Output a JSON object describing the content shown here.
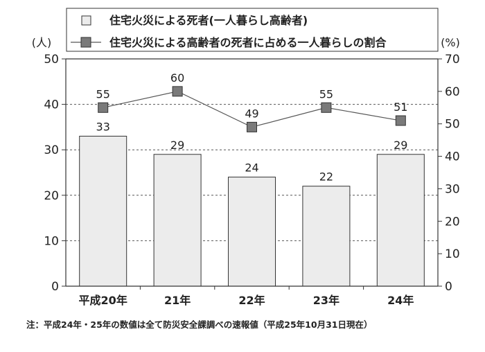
{
  "chart_data": {
    "type": "bar+line",
    "categories": [
      "平成20年",
      "21年",
      "22年",
      "23年",
      "24年"
    ],
    "series": [
      {
        "name": "住宅火災による死者(一人暮らし高齢者)",
        "type": "bar",
        "axis": "left",
        "values": [
          33,
          29,
          24,
          22,
          29
        ],
        "color": "#ececec"
      },
      {
        "name": "住宅火災による高齢者の死者に占める一人暮らしの割合",
        "type": "line",
        "axis": "right",
        "values": [
          55,
          60,
          49,
          55,
          51
        ],
        "color": "#7a7a7a"
      }
    ],
    "ylabel_left": "(人)",
    "ylabel_right": "(%)",
    "ylim_left": [
      0,
      50
    ],
    "ylim_right": [
      0,
      70
    ],
    "yticks_left": [
      "0",
      "10",
      "20",
      "30",
      "40",
      "50"
    ],
    "yticks_right": [
      "0",
      "10",
      "20",
      "30",
      "40",
      "50",
      "60",
      "70"
    ],
    "grid": "dashed horizontal",
    "legend_position": "top"
  },
  "note": "注：平成24年・25年の数値は全て防災安全課調べの速報値（平成25年10月31日現在）"
}
